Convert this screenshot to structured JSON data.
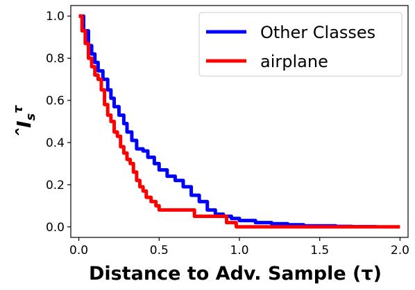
{
  "chart_data": {
    "type": "line",
    "title": "",
    "xlabel": "Distance to Adv. Sample (τ)",
    "ylabel": "Îₛᵗ",
    "ylabel_parts": {
      "base": "I",
      "hat": "ˆ",
      "sub": "s",
      "sup": "τ"
    },
    "xlim": [
      -0.05,
      2.05
    ],
    "ylim": [
      -0.05,
      1.05
    ],
    "xticks": [
      0.0,
      0.5,
      1.0,
      1.5,
      2.0
    ],
    "xtick_labels": [
      "0.0",
      "0.5",
      "1.0",
      "1.5",
      "2.0"
    ],
    "yticks": [
      0.0,
      0.2,
      0.4,
      0.6,
      0.8,
      1.0
    ],
    "ytick_labels": [
      "0.0",
      "0.2",
      "0.4",
      "0.6",
      "0.8",
      "1.0"
    ],
    "grid": false,
    "legend_position": "top-right",
    "series": [
      {
        "name": "Other Classes",
        "color": "#0000ff",
        "x": [
          0.0,
          0.03,
          0.06,
          0.08,
          0.1,
          0.12,
          0.15,
          0.18,
          0.2,
          0.22,
          0.25,
          0.28,
          0.3,
          0.33,
          0.36,
          0.4,
          0.43,
          0.47,
          0.5,
          0.55,
          0.6,
          0.65,
          0.7,
          0.75,
          0.8,
          0.85,
          0.9,
          0.95,
          1.0,
          1.1,
          1.2,
          1.3,
          1.4,
          1.5,
          1.6,
          1.7,
          1.85
        ],
        "y": [
          1.0,
          0.93,
          0.86,
          0.82,
          0.78,
          0.74,
          0.7,
          0.65,
          0.61,
          0.57,
          0.53,
          0.49,
          0.45,
          0.41,
          0.37,
          0.36,
          0.33,
          0.3,
          0.27,
          0.24,
          0.22,
          0.19,
          0.15,
          0.12,
          0.08,
          0.06,
          0.05,
          0.04,
          0.03,
          0.02,
          0.015,
          0.01,
          0.005,
          0.005,
          0.002,
          0.001,
          0.0
        ]
      },
      {
        "name": "airplane",
        "color": "#ff0000",
        "x": [
          0.0,
          0.02,
          0.04,
          0.06,
          0.08,
          0.1,
          0.12,
          0.14,
          0.16,
          0.18,
          0.2,
          0.22,
          0.24,
          0.26,
          0.28,
          0.3,
          0.32,
          0.34,
          0.36,
          0.38,
          0.4,
          0.42,
          0.45,
          0.48,
          0.5,
          0.72,
          0.92,
          0.98,
          1.2,
          1.5,
          1.8,
          2.0
        ],
        "y": [
          1.0,
          0.93,
          0.87,
          0.8,
          0.76,
          0.72,
          0.7,
          0.65,
          0.58,
          0.53,
          0.5,
          0.45,
          0.43,
          0.38,
          0.35,
          0.32,
          0.3,
          0.26,
          0.22,
          0.19,
          0.17,
          0.14,
          0.12,
          0.1,
          0.08,
          0.05,
          0.02,
          0.0,
          0.0,
          0.0,
          0.0,
          0.0
        ]
      }
    ]
  }
}
